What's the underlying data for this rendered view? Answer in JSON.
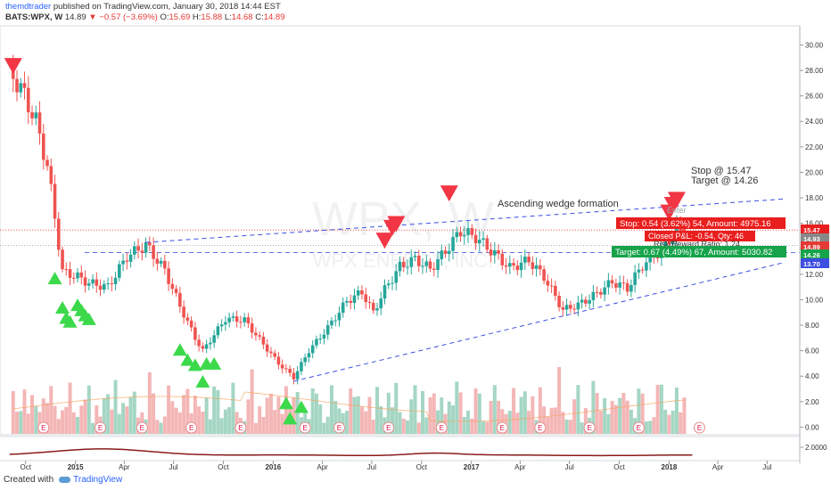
{
  "header": {
    "author": "themdtrader",
    "published": "published on TradingView.com, January 30, 2018 14:44 EST",
    "symbol": "BATS:WPX, W",
    "last": "14.89",
    "change": "−0.57 (−3.69%)",
    "o_label": "O:",
    "o_val": "15.69",
    "h_label": "H:",
    "h_val": "15.88",
    "l_label": "L:",
    "l_val": "14.68",
    "c_label": "C:",
    "c_val": "14.89"
  },
  "watermark": {
    "ticker": "WPX, W",
    "name": "WPX ENERGY, INC."
  },
  "annotations": {
    "stop_target_1": "Stop @ 15.47",
    "stop_target_2": "Target @ 14.26",
    "wedge": "Ascending wedge formation",
    "enter": "Enter",
    "stop_box": "Stop: 0.54 (3.62%) 54, Amount: 4975.16",
    "closed_box": "Closed P&L: -0.54, Qty: 46",
    "rr_box": "Risk/Reward Ratio: 1.24",
    "target_box": "Target: 0.67 (4.49%) 67, Amount: 5030.82"
  },
  "price_tags": [
    "15.47",
    "14.93",
    "14.89",
    "14.26",
    "13.70"
  ],
  "footer": {
    "created": "Created with",
    "brand": "TradingView"
  },
  "colors": {
    "up": "#26a69a",
    "down": "#ef5350",
    "vol_up": "#a5d6c4",
    "vol_down": "#f4b6b6",
    "signal_down": "#f23645",
    "signal_up": "#3cd94b",
    "trendline": "#3d4fe0",
    "stop": "#e91e1e",
    "target": "#16a34a",
    "last": "#e53935",
    "lower_line": "#8b1a1a"
  },
  "chart_data": {
    "type": "candlestick",
    "symbol": "BATS:WPX",
    "interval": "W",
    "x_tick_labels": [
      "Oct",
      "2015",
      "Apr",
      "Jul",
      "Oct",
      "2016",
      "Apr",
      "Jul",
      "Oct",
      "2017",
      "Apr",
      "Jul",
      "Oct",
      "2018",
      "Apr",
      "Jul"
    ],
    "y_tick_labels": [
      "30.00",
      "28.00",
      "26.00",
      "24.00",
      "22.00",
      "20.00",
      "18.00",
      "16.00",
      "14.00",
      "12.00",
      "10.00",
      "8.00",
      "6.00",
      "4.00",
      "2.00",
      "0.00"
    ],
    "ylim": [
      -0.6,
      31.5
    ],
    "lower_pane_ticks": [
      "2.0000"
    ],
    "weekly_close_anchors": [
      {
        "date": "2014-09-08",
        "close": 27.6
      },
      {
        "date": "2014-09-29",
        "close": 26.0
      },
      {
        "date": "2014-10-20",
        "close": 24.0
      },
      {
        "date": "2014-11-10",
        "close": 20.5
      },
      {
        "date": "2014-11-24",
        "close": 16.5
      },
      {
        "date": "2014-12-08",
        "close": 12.2
      },
      {
        "date": "2015-01-05",
        "close": 11.8
      },
      {
        "date": "2015-01-26",
        "close": 11.3
      },
      {
        "date": "2015-03-02",
        "close": 11.0
      },
      {
        "date": "2015-04-06",
        "close": 13.4
      },
      {
        "date": "2015-05-11",
        "close": 14.3
      },
      {
        "date": "2015-06-15",
        "close": 12.3
      },
      {
        "date": "2015-07-13",
        "close": 9.5
      },
      {
        "date": "2015-08-10",
        "close": 7.0
      },
      {
        "date": "2015-08-24",
        "close": 6.0
      },
      {
        "date": "2015-10-05",
        "close": 8.5
      },
      {
        "date": "2015-11-09",
        "close": 8.4
      },
      {
        "date": "2015-12-14",
        "close": 6.5
      },
      {
        "date": "2016-01-11",
        "close": 5.0
      },
      {
        "date": "2016-02-08",
        "close": 3.9
      },
      {
        "date": "2016-03-07",
        "close": 6.0
      },
      {
        "date": "2016-04-11",
        "close": 7.8
      },
      {
        "date": "2016-05-16",
        "close": 9.9
      },
      {
        "date": "2016-06-13",
        "close": 10.6
      },
      {
        "date": "2016-07-04",
        "close": 9.0
      },
      {
        "date": "2016-07-25",
        "close": 10.8
      },
      {
        "date": "2016-08-22",
        "close": 12.6
      },
      {
        "date": "2016-09-19",
        "close": 13.2
      },
      {
        "date": "2016-10-17",
        "close": 12.4
      },
      {
        "date": "2016-11-14",
        "close": 13.8
      },
      {
        "date": "2016-12-12",
        "close": 15.4
      },
      {
        "date": "2017-01-09",
        "close": 14.9
      },
      {
        "date": "2017-02-13",
        "close": 13.6
      },
      {
        "date": "2017-03-13",
        "close": 12.5
      },
      {
        "date": "2017-04-17",
        "close": 13.1
      },
      {
        "date": "2017-05-15",
        "close": 11.8
      },
      {
        "date": "2017-06-19",
        "close": 9.2
      },
      {
        "date": "2017-07-17",
        "close": 9.6
      },
      {
        "date": "2017-08-14",
        "close": 10.3
      },
      {
        "date": "2017-09-18",
        "close": 11.4
      },
      {
        "date": "2017-10-16",
        "close": 10.9
      },
      {
        "date": "2017-11-13",
        "close": 12.7
      },
      {
        "date": "2017-12-18",
        "close": 13.9
      },
      {
        "date": "2018-01-15",
        "close": 15.5
      },
      {
        "date": "2018-01-29",
        "close": 14.89
      }
    ],
    "last_bar": {
      "open": 15.69,
      "high": 15.88,
      "low": 14.68,
      "close": 14.89
    },
    "horizontal_levels": [
      {
        "name": "",
        "value": 15.47
      },
      {
        "name": "",
        "value": 14.26
      },
      {
        "name": "",
        "value": 13.7
      }
    ],
    "trendlines": [
      {
        "name": "upper wedge",
        "from": {
          "date": "2015-05-11",
          "price": 14.5
        },
        "to": {
          "date": "2018-07-30",
          "price": 17.9
        }
      },
      {
        "name": "lower wedge",
        "from": {
          "date": "2016-02-08",
          "price": 3.6
        },
        "to": {
          "date": "2018-07-30",
          "price": 12.9
        }
      }
    ],
    "signal_markers_down": [
      {
        "date": "2014-09-08",
        "price": 28.2
      },
      {
        "date": "2016-07-25",
        "price": 14.5
      },
      {
        "date": "2016-08-08",
        "price": 15.5
      },
      {
        "date": "2016-08-15",
        "price": 15.8
      },
      {
        "date": "2016-11-21",
        "price": 18.2
      },
      {
        "date": "2018-01-01",
        "price": 16.7
      },
      {
        "date": "2018-01-08",
        "price": 17.3
      },
      {
        "date": "2018-01-15",
        "price": 17.7
      }
    ],
    "signal_markers_up": [
      {
        "date": "2014-11-24",
        "price": 11.7
      },
      {
        "date": "2014-12-08",
        "price": 9.4
      },
      {
        "date": "2014-12-15",
        "price": 8.6
      },
      {
        "date": "2014-12-22",
        "price": 8.3
      },
      {
        "date": "2015-01-05",
        "price": 9.6
      },
      {
        "date": "2015-01-12",
        "price": 9.2
      },
      {
        "date": "2015-01-19",
        "price": 8.8
      },
      {
        "date": "2015-01-26",
        "price": 8.5
      },
      {
        "date": "2015-07-13",
        "price": 6.1
      },
      {
        "date": "2015-07-27",
        "price": 5.3
      },
      {
        "date": "2015-08-10",
        "price": 4.9
      },
      {
        "date": "2015-08-24",
        "price": 3.6
      },
      {
        "date": "2015-08-31",
        "price": 5.0
      },
      {
        "date": "2015-09-14",
        "price": 5.0
      },
      {
        "date": "2016-01-25",
        "price": 1.9
      },
      {
        "date": "2016-02-01",
        "price": 0.7
      },
      {
        "date": "2016-02-22",
        "price": 1.6
      }
    ],
    "earnings_markers": [
      "2014-11-03",
      "2015-02-16",
      "2015-05-04",
      "2015-08-03",
      "2015-11-02",
      "2016-02-29",
      "2016-05-02",
      "2016-08-01",
      "2016-11-07",
      "2017-02-27",
      "2017-05-08",
      "2017-08-07",
      "2017-11-06",
      "2018-02-26"
    ]
  }
}
